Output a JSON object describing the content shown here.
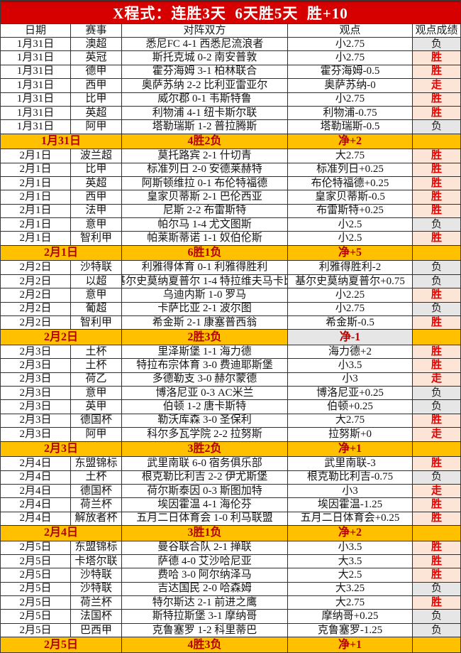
{
  "title_bar": {
    "label": "X程式：连胜3天  6天胜5天  胜+10"
  },
  "colors": {
    "title_bar_bg": "#d60000",
    "title_text": "#ffffff",
    "header_bg": "#fcebe2",
    "win_push_bg": "#fce4d6",
    "win_push_text": "#e60000",
    "loss_bg": "#e7e6e6",
    "summary_bg": "#ffc000",
    "summary_text": "#b30000"
  },
  "legend": {
    "win": "胜",
    "loss": "负",
    "push": "走"
  },
  "chart_data": {
    "type": "table",
    "title": "X程式：连胜3天 6天胜5天 胜+10",
    "columns": [
      "日期",
      "赛事",
      "对阵双方",
      "观点",
      "观点成绩"
    ],
    "rows": [
      [
        "1月31日",
        "澳超",
        "悉尼FC 4-1 西悉尼流浪者",
        "小2.75",
        "负"
      ],
      [
        "1月31日",
        "英冠",
        "斯托克城 0-2 南安普敦",
        "小2.75",
        "胜"
      ],
      [
        "1月31日",
        "德甲",
        "霍芬海姆 3-1 柏林联合",
        "霍芬海姆-0.5",
        "胜"
      ],
      [
        "1月31日",
        "西甲",
        "奥萨苏纳 2-2 比利亚雷亚尔",
        "奥萨苏纳-0",
        "走"
      ],
      [
        "1月31日",
        "比甲",
        "威尔郡 0-1 韦斯特鲁",
        "小2.75",
        "胜"
      ],
      [
        "1月31日",
        "英超",
        "利物浦 4-1 纽卡斯尔联",
        "利物浦-0.75",
        "胜"
      ],
      [
        "1月31日",
        "阿甲",
        "塔勒瑞斯 1-2 普拉腾斯",
        "塔勒瑞斯-0.5",
        "负"
      ],
      [
        "1月31日",
        "",
        "4胜2负",
        "净+2",
        ""
      ],
      [
        "2月1日",
        "波兰超",
        "莫托路宾 2-1 什切青",
        "大2.75",
        "胜"
      ],
      [
        "2月1日",
        "比甲",
        "标准列日 2-0 安德莱赫特",
        "标准列日+0.25",
        "胜"
      ],
      [
        "2月1日",
        "英超",
        "阿斯顿维拉 0-1 布伦特福德",
        "布伦特福德+0.25",
        "胜"
      ],
      [
        "2月1日",
        "西甲",
        "皇家贝蒂斯 2-1 巴伦西亚",
        "皇家贝蒂斯-0.5",
        "胜"
      ],
      [
        "2月1日",
        "法甲",
        "尼斯 2-2 布雷斯特",
        "布雷斯特+0.25",
        "胜"
      ],
      [
        "2月1日",
        "意甲",
        "帕尔马 1-4 尤文图斯",
        "小2.5",
        "负"
      ],
      [
        "2月1日",
        "智利甲",
        "帕莱斯蒂诺 1-1 奴伯伦斯",
        "小2.5",
        "胜"
      ],
      [
        "2月1日",
        "",
        "6胜1负",
        "净+5",
        ""
      ],
      [
        "2月2日",
        "沙特联",
        "利雅得体育 0-1 利雅得胜利",
        "利雅得胜利-2",
        "负"
      ],
      [
        "2月2日",
        "以超",
        "基尔史莫纳夏普尔 1-4 特拉维夫马卡比",
        "基尔史莫纳夏普尔+0.75",
        "负"
      ],
      [
        "2月2日",
        "意甲",
        "乌迪内斯 1-0 罗马",
        "小2.25",
        "胜"
      ],
      [
        "2月2日",
        "葡超",
        "卡萨比亚 2-1 波尔图",
        "小2.75",
        "负"
      ],
      [
        "2月2日",
        "智利甲",
        "希金斯 2-1 康塞普西翁",
        "希金斯-0.5",
        "胜"
      ],
      [
        "2月2日",
        "",
        "2胜3负",
        "净-1",
        ""
      ],
      [
        "2月3日",
        "土杯",
        "里泽斯堡 1-1 海力德",
        "海力德+2",
        "胜"
      ],
      [
        "2月3日",
        "土杯",
        "特拉布宗体育 3-0 费迪耶斯堡",
        "小3.5",
        "胜"
      ],
      [
        "2月3日",
        "荷乙",
        "多德勒支 3-0 赫尔蒙德",
        "小3",
        "走"
      ],
      [
        "2月3日",
        "意甲",
        "博洛尼亚 0-3 AC米兰",
        "博洛尼亚+0.25",
        "负"
      ],
      [
        "2月3日",
        "英甲",
        "伯顿 1-2 唐卡斯特",
        "伯顿+0.25",
        "负"
      ],
      [
        "2月3日",
        "德国杯",
        "勒沃库森 3-0 圣保利",
        "大2.75",
        "胜"
      ],
      [
        "2月3日",
        "阿甲",
        "科尔多瓦学院 2-2 拉努斯",
        "拉努斯+0",
        "走"
      ],
      [
        "2月3日",
        "",
        "3胜2负",
        "净+1",
        ""
      ],
      [
        "2月4日",
        "东盟锦标",
        "武里南联 6-0 宿务俱乐部",
        "武里南联-3",
        "胜"
      ],
      [
        "2月4日",
        "土杯",
        "根克勒比利吉 2-2 伊尤斯堡",
        "根克勒比利吉-0.75",
        "负"
      ],
      [
        "2月4日",
        "德国杯",
        "荷尔斯泰因 0-3 斯图加特",
        "小3",
        "走"
      ],
      [
        "2月4日",
        "荷兰杯",
        "埃因霍温 4-1 海伦芬",
        "埃因霍温-1.25",
        "胜"
      ],
      [
        "2月4日",
        "解放者杯",
        "五月二日体育会 1-0 利马联盟",
        "五月二日体育会+0.25",
        "胜"
      ],
      [
        "2月4日",
        "",
        "3胜1负",
        "净+2",
        ""
      ],
      [
        "2月5日",
        "东盟锦标",
        "曼谷联合队 2-1 掸联",
        "小3.5",
        "胜"
      ],
      [
        "2月5日",
        "卡塔尔联",
        "萨德 4-0 艾沙哈尼亚",
        "大3.5",
        "胜"
      ],
      [
        "2月5日",
        "沙特联",
        "费哈 3-0 阿尔纳泽马",
        "大2.5",
        "胜"
      ],
      [
        "2月5日",
        "沙特联",
        "吉达国民 2-0 哈森姆",
        "大3.25",
        "负"
      ],
      [
        "2月5日",
        "荷兰杯",
        "特尔斯达 2-1 前进之鹰",
        "大2.75",
        "胜"
      ],
      [
        "2月5日",
        "法国杯",
        "斯特拉斯堡 3-1 摩纳哥",
        "摩纳哥+0.25",
        "负"
      ],
      [
        "2月5日",
        "巴西甲",
        "克鲁塞罗 1-2 科里蒂巴",
        "克鲁塞罗-1.25",
        "负"
      ],
      [
        "2月5日",
        "",
        "4胜3负",
        "净+1",
        ""
      ]
    ]
  }
}
